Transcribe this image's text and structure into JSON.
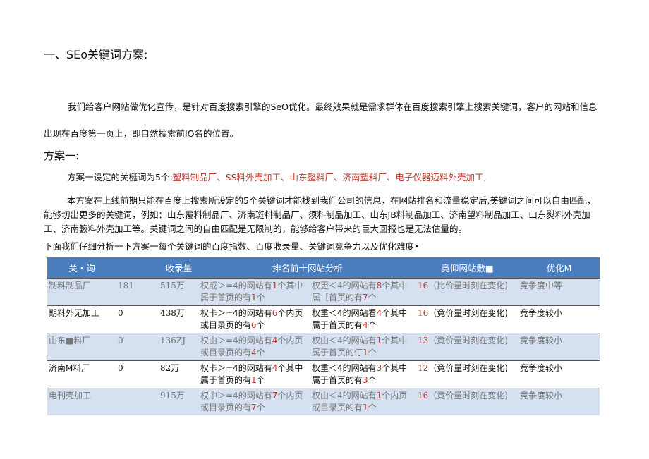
{
  "heading1": "一、SEo关键词方案:",
  "intro": "我们给客户网站做优化宣传，是针对百度搜索引擎的SeO优化。最终效果就是需求群体在百度搜索引擎上搜索关键词，客户的网站和信息出现在百度第一页上，即自然搜索前IO名的位置。",
  "heading2": "方案一:",
  "keywords_lead": "方案一设定的关梃词为5个:",
  "keywords_list": "塑料制品厂、SS料外壳加工、山东整料厂、济南塑料厂、电子仪器迈料外壳加工,",
  "para2": "本方案在上线前期只能在百度上搜索所设定的5个关键词才能找到我们公司的信息，在网站排名和流量稳定后,美键词之间可以自由匹配，能够切出更多的关键词，例如：山东覆料制品厂、济南斑料制品厂、须料制品加工、山东JB料制品加工、济南望料制品加工、山东熨料外壳加工、济南籔料外壳加工等。关键词之间的自由匹配是无限制的，能够给客户带来的巨大回报也是无法估量的。",
  "para3": "下面我们仔细分析一下方案一每个关键词的百度指数、百度收录量、关键词竞争力以及优化难度•",
  "table": {
    "headers": [
      "关・询",
      "",
      "收录量",
      "排名前十网站分析",
      "竟仰网站敷■",
      "优化M"
    ],
    "rows": [
      {
        "keyword": "制料制品厂",
        "index": "181",
        "count": "515万",
        "a1": [
          "权或＞=4的网站有",
          "1",
          "个其中属于首页的有",
          "1",
          "个"
        ],
        "a2": [
          "权更＜4的网站有",
          "8",
          "个其中属［首页的有",
          "7",
          "个"
        ],
        "compete_num": "16",
        "compete_text": "（比价量时刻在变化)",
        "difficulty": "竞争度中等"
      },
      {
        "keyword": "期料外无加工",
        "index": "0",
        "count": "438万",
        "a1": [
          "权卡＞=4的网站有",
          "6",
          "个内页或目录页的有",
          "6",
          "个"
        ],
        "a2": [
          "权重＜4的网站看",
          "4",
          "个其中属于首页的有",
          "4",
          "个"
        ],
        "compete_num": "16",
        "compete_text": "（竟价量时刻在变化)",
        "difficulty": "竞争度较小"
      },
      {
        "keyword": "山东■料厂",
        "index": "0",
        "count": "136ZJ",
        "a1": [
          "权由＞=4的网站有",
          "4",
          "个内页或目录页的有",
          "4",
          "个"
        ],
        "a2": [
          "权由＜4的网站有",
          "1",
          "个其中属于首页的仃",
          "1",
          "个"
        ],
        "compete_num": "13",
        "compete_text": "（竟价量时刻在变化)",
        "difficulty": "竞争度较小"
      },
      {
        "keyword": "济南M料厂",
        "index": "0",
        "count": "82万",
        "a1": [
          "权卡＞=4的网站有",
          "4",
          "个其中属于首页的有",
          "1",
          "个"
        ],
        "a2": [
          "权重＜4的网站有",
          "3",
          "个其中属于首页的有",
          "3",
          "个"
        ],
        "compete_num": "12",
        "compete_text": "（竟价量时刻在变化)",
        "difficulty": "竞争度较小"
      },
      {
        "keyword": "电刊壳加工",
        "index": "",
        "count": "915万",
        "a1": [
          "权中＞=4的网站有",
          "7",
          "个内页或目录页的有",
          "7",
          "个"
        ],
        "a2": [
          "权由＜4的网站有",
          "1",
          "个内页或目录页的有",
          "1",
          "个"
        ],
        "compete_num": "16",
        "compete_text": "（竟价量时刻在变化)",
        "difficulty": "竞争度较小"
      }
    ]
  }
}
